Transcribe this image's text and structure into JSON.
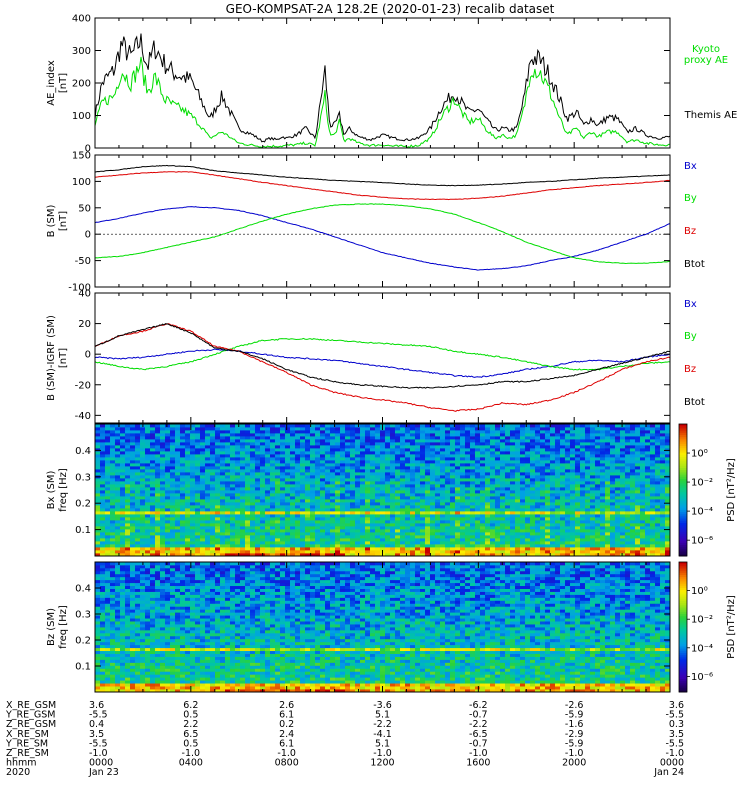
{
  "title": "GEO-KOMPSAT-2A 128.2E (2020-01-23) recalib dataset",
  "colors": {
    "black": "#000000",
    "green": "#00dd00",
    "red": "#dd0000",
    "blue": "#0000cc"
  },
  "chart_data": [
    {
      "type": "line",
      "id": "ae",
      "ylabel": "AE_index [nT]",
      "ylabel_line1": "AE_index",
      "ylabel_line2": "[nT]",
      "ylim": [
        0,
        400
      ],
      "yticks": [
        "0",
        "100",
        "200",
        "300",
        "400"
      ],
      "legend": [
        {
          "name": "Kyoto proxy AE",
          "line1": "Kyoto",
          "line2": "proxy AE",
          "color": "#00dd00"
        },
        {
          "name": "Themis AE",
          "color": "#000000"
        }
      ],
      "series": [
        {
          "name": "Themis AE",
          "color": "#000000",
          "x": [
            0,
            0.3,
            0.8,
            1.1,
            1.5,
            1.9,
            2.2,
            2.5,
            2.9,
            3.3,
            3.6,
            4.0,
            4.4,
            4.8,
            5.3,
            6.0,
            6.6,
            7.0,
            7.3,
            7.6,
            7.8,
            8.0,
            8.4,
            8.8,
            9.2,
            9.6,
            9.8,
            10.0,
            10.2,
            10.4,
            10.6,
            11.0,
            11.5,
            12.0,
            12.5,
            13.0,
            13.5,
            14.0,
            14.5,
            15.0,
            15.3,
            15.6,
            16.0,
            16.3,
            16.7,
            17.0,
            17.3,
            17.6,
            17.9,
            18.2,
            18.6,
            19.0,
            19.4,
            19.7,
            20.1,
            20.4,
            20.7,
            21.0,
            21.4,
            21.8,
            22.2,
            22.6,
            23.0,
            23.5,
            24.0
          ],
          "values": [
            100,
            200,
            240,
            320,
            280,
            330,
            250,
            310,
            260,
            230,
            220,
            210,
            150,
            90,
            160,
            60,
            40,
            20,
            30,
            25,
            35,
            30,
            40,
            60,
            30,
            240,
            70,
            70,
            100,
            40,
            60,
            35,
            25,
            40,
            30,
            25,
            30,
            60,
            130,
            170,
            140,
            110,
            120,
            90,
            55,
            60,
            55,
            60,
            150,
            280,
            270,
            220,
            150,
            90,
            110,
            70,
            90,
            70,
            95,
            90,
            50,
            60,
            40,
            30,
            35
          ]
        },
        {
          "name": "Kyoto proxy AE",
          "color": "#00dd00",
          "x": [
            0,
            0.3,
            0.8,
            1.1,
            1.5,
            1.9,
            2.2,
            2.5,
            2.9,
            3.3,
            3.6,
            4.0,
            4.4,
            4.8,
            5.3,
            6.0,
            6.6,
            7.0,
            7.3,
            7.6,
            7.8,
            8.0,
            8.4,
            8.8,
            9.2,
            9.6,
            9.8,
            10.0,
            10.2,
            10.4,
            10.6,
            11.0,
            11.5,
            12.0,
            12.5,
            13.0,
            13.5,
            14.0,
            14.5,
            15.0,
            15.3,
            15.6,
            16.0,
            16.3,
            16.7,
            17.0,
            17.3,
            17.6,
            17.9,
            18.2,
            18.6,
            19.0,
            19.4,
            19.7,
            20.1,
            20.4,
            20.7,
            21.0,
            21.4,
            21.8,
            22.2,
            22.6,
            23.0,
            23.5,
            24.0
          ],
          "values": [
            70,
            140,
            160,
            240,
            200,
            260,
            170,
            220,
            150,
            130,
            120,
            100,
            70,
            30,
            50,
            15,
            8,
            5,
            5,
            6,
            6,
            8,
            10,
            15,
            8,
            160,
            40,
            40,
            80,
            20,
            30,
            15,
            8,
            10,
            5,
            5,
            8,
            30,
            100,
            150,
            110,
            80,
            90,
            60,
            30,
            40,
            30,
            40,
            120,
            250,
            230,
            170,
            90,
            40,
            60,
            30,
            50,
            35,
            50,
            50,
            20,
            25,
            15,
            10,
            10
          ]
        }
      ]
    },
    {
      "type": "line",
      "id": "b",
      "ylabel": "B (SM) [nT]",
      "ylabel_line1": "B (SM)",
      "ylabel_line2": "[nT]",
      "ylim": [
        -100,
        150
      ],
      "yticks": [
        "-100",
        "-50",
        "0",
        "50",
        "100",
        "150"
      ],
      "legend": [
        {
          "name": "Bx",
          "color": "#0000cc"
        },
        {
          "name": "By",
          "color": "#00dd00"
        },
        {
          "name": "Bz",
          "color": "#dd0000"
        },
        {
          "name": "Btot",
          "color": "#000000"
        }
      ],
      "series": [
        {
          "name": "Bx",
          "color": "#0000cc",
          "x": [
            0,
            1,
            2,
            3,
            4,
            5,
            6,
            7,
            8,
            9,
            10,
            11,
            12,
            13,
            14,
            15,
            16,
            17,
            18,
            19,
            20,
            21,
            22,
            23,
            24
          ],
          "values": [
            22,
            30,
            40,
            48,
            52,
            50,
            45,
            35,
            22,
            10,
            -5,
            -20,
            -35,
            -45,
            -55,
            -62,
            -68,
            -65,
            -60,
            -50,
            -42,
            -30,
            -15,
            0,
            20
          ]
        },
        {
          "name": "By",
          "color": "#00dd00",
          "x": [
            0,
            1,
            2,
            3,
            4,
            5,
            6,
            7,
            8,
            9,
            10,
            11,
            12,
            13,
            14,
            15,
            16,
            17,
            18,
            19,
            20,
            21,
            22,
            23,
            24
          ],
          "values": [
            -45,
            -42,
            -35,
            -25,
            -15,
            -5,
            10,
            25,
            38,
            48,
            55,
            57,
            57,
            54,
            48,
            38,
            22,
            5,
            -15,
            -30,
            -45,
            -52,
            -55,
            -55,
            -52
          ]
        },
        {
          "name": "Bz",
          "color": "#dd0000",
          "x": [
            0,
            1,
            2,
            3,
            4,
            5,
            6,
            7,
            8,
            9,
            10,
            11,
            12,
            13,
            14,
            15,
            16,
            17,
            18,
            19,
            20,
            21,
            22,
            23,
            24
          ],
          "values": [
            108,
            112,
            116,
            118,
            118,
            112,
            105,
            98,
            92,
            86,
            80,
            74,
            70,
            67,
            66,
            66,
            68,
            72,
            78,
            84,
            88,
            92,
            95,
            98,
            102
          ]
        },
        {
          "name": "Btot",
          "color": "#000000",
          "x": [
            0,
            1,
            2,
            3,
            4,
            5,
            6,
            7,
            8,
            9,
            10,
            11,
            12,
            13,
            14,
            15,
            16,
            17,
            18,
            19,
            20,
            21,
            22,
            23,
            24
          ],
          "values": [
            118,
            122,
            128,
            130,
            128,
            120,
            116,
            112,
            108,
            105,
            102,
            100,
            98,
            95,
            93,
            92,
            93,
            95,
            98,
            100,
            103,
            106,
            108,
            110,
            112
          ]
        }
      ]
    },
    {
      "type": "line",
      "id": "dbigrf",
      "ylabel": "B (SM)-IGRF (SM) [nT]",
      "ylabel_line1": "B (SM)-IGRF (SM)",
      "ylabel_line2": "[nT]",
      "ylim": [
        -45,
        40
      ],
      "yticks": [
        "-40",
        "-20",
        "0",
        "20",
        "40"
      ],
      "legend": [
        {
          "name": "Bx",
          "color": "#0000cc"
        },
        {
          "name": "By",
          "color": "#00dd00"
        },
        {
          "name": "Bz",
          "color": "#dd0000"
        },
        {
          "name": "Btot",
          "color": "#000000"
        }
      ],
      "series": [
        {
          "name": "Bx",
          "color": "#0000cc",
          "x": [
            0,
            1,
            2,
            3,
            4,
            5,
            6,
            7,
            8,
            9,
            10,
            11,
            12,
            13,
            14,
            15,
            16,
            17,
            18,
            19,
            20,
            21,
            22,
            23,
            24
          ],
          "values": [
            -2,
            -3,
            -2,
            0,
            2,
            3,
            2,
            0,
            -2,
            -3,
            -4,
            -6,
            -8,
            -10,
            -12,
            -14,
            -15,
            -13,
            -10,
            -8,
            -5,
            -4,
            -5,
            -2,
            0
          ]
        },
        {
          "name": "By",
          "color": "#00dd00",
          "x": [
            0,
            1,
            2,
            3,
            4,
            5,
            6,
            7,
            8,
            9,
            10,
            11,
            12,
            13,
            14,
            15,
            16,
            17,
            18,
            19,
            20,
            21,
            22,
            23,
            24
          ],
          "values": [
            -5,
            -8,
            -10,
            -8,
            -5,
            0,
            5,
            9,
            10,
            10,
            9,
            8,
            7,
            6,
            5,
            2,
            0,
            -2,
            -5,
            -8,
            -10,
            -10,
            -8,
            -6,
            -5
          ]
        },
        {
          "name": "Bz",
          "color": "#dd0000",
          "x": [
            0,
            1,
            2,
            3,
            4,
            5,
            6,
            7,
            8,
            9,
            10,
            11,
            12,
            13,
            14,
            15,
            16,
            17,
            18,
            19,
            20,
            21,
            22,
            23,
            24
          ],
          "values": [
            5,
            12,
            15,
            20,
            15,
            5,
            2,
            -5,
            -12,
            -20,
            -25,
            -28,
            -30,
            -32,
            -35,
            -37,
            -36,
            -32,
            -33,
            -30,
            -25,
            -18,
            -10,
            -5,
            -2
          ]
        },
        {
          "name": "Btot",
          "color": "#000000",
          "x": [
            0,
            1,
            2,
            3,
            4,
            5,
            6,
            7,
            8,
            9,
            10,
            11,
            12,
            13,
            14,
            15,
            16,
            17,
            18,
            19,
            20,
            21,
            22,
            23,
            24
          ],
          "values": [
            5,
            12,
            16,
            20,
            14,
            4,
            2,
            -3,
            -10,
            -15,
            -18,
            -20,
            -21,
            -22,
            -22,
            -21,
            -20,
            -18,
            -18,
            -16,
            -14,
            -10,
            -6,
            -2,
            2
          ]
        }
      ]
    },
    {
      "type": "heatmap",
      "id": "spec_bx",
      "ylabel": "Bx (SM) freq [Hz]",
      "ylabel_line1": "Bx (SM)",
      "ylabel_line2": "freq [Hz]",
      "ylim": [
        0,
        0.5
      ],
      "yticks": [
        "0.1",
        "0.2",
        "0.3",
        "0.4"
      ],
      "colorbar": {
        "label": "PSD [nT²/Hz]",
        "ticks": [
          "10⁰",
          "10⁻²",
          "10⁻⁴",
          "10⁻⁶"
        ]
      },
      "line_freq": 0.167
    },
    {
      "type": "heatmap",
      "id": "spec_bz",
      "ylabel": "Bz (SM) freq [Hz]",
      "ylabel_line1": "Bz (SM)",
      "ylabel_line2": "freq [Hz]",
      "ylim": [
        0,
        0.5
      ],
      "yticks": [
        "0.1",
        "0.2",
        "0.3",
        "0.4"
      ],
      "colorbar": {
        "label": "PSD [nT²/Hz]",
        "ticks": [
          "10⁰",
          "10⁻²",
          "10⁻⁴",
          "10⁻⁶"
        ]
      },
      "line_freq": 0.167
    }
  ],
  "xaxis": {
    "xlim": [
      0,
      24
    ],
    "tick_hours": [
      0,
      4,
      8,
      12,
      16,
      20,
      24
    ],
    "rows": [
      {
        "label": "X_RE_GSM",
        "values": [
          "3.6",
          "6.2",
          "2.6",
          "-3.6",
          "-6.2",
          "-2.6",
          "3.6"
        ]
      },
      {
        "label": "Y_RE_GSM",
        "values": [
          "-5.5",
          "0.5",
          "6.1",
          "5.1",
          "-0.7",
          "-5.9",
          "-5.5"
        ]
      },
      {
        "label": "Z_RE_GSM",
        "values": [
          "0.4",
          "2.2",
          "0.2",
          "-2.2",
          "-2.2",
          "-1.6",
          "0.3"
        ]
      },
      {
        "label": "X_RE_SM",
        "values": [
          "3.5",
          "6.5",
          "2.4",
          "-4.1",
          "-6.5",
          "-2.9",
          "3.5"
        ]
      },
      {
        "label": "Y_RE_SM",
        "values": [
          "-5.5",
          "0.5",
          "6.1",
          "5.1",
          "-0.7",
          "-5.9",
          "-5.5"
        ]
      },
      {
        "label": "Z_RE_SM",
        "values": [
          "-1.0",
          "-1.0",
          "-1.0",
          "-1.0",
          "-1.0",
          "-1.0",
          "-1.0"
        ]
      },
      {
        "label": "hhmm",
        "values": [
          "0000",
          "0400",
          "0800",
          "1200",
          "1600",
          "2000",
          "0000"
        ]
      },
      {
        "label": "2020",
        "values": [
          "Jan 23",
          "",
          "",
          "",
          "",
          "",
          "Jan 24"
        ]
      }
    ]
  }
}
